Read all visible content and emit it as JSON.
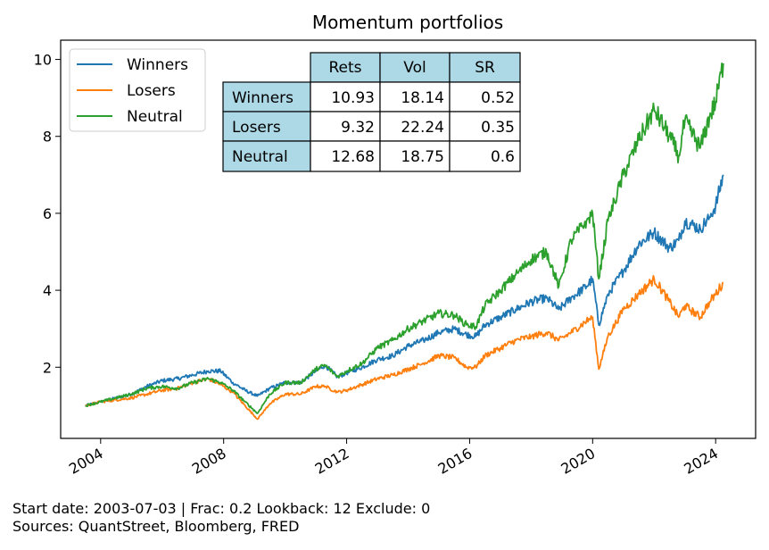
{
  "chart_data": {
    "type": "line",
    "title": "Momentum portfolios",
    "xlabel": "",
    "ylabel": "",
    "xlim": [
      2002.7,
      2025.3
    ],
    "ylim": [
      0.15,
      10.5
    ],
    "x_ticks": [
      2004,
      2008,
      2012,
      2016,
      2020,
      2024
    ],
    "y_ticks": [
      2,
      4,
      6,
      8,
      10
    ],
    "grid": false,
    "legend_placement": "top-left",
    "colors": {
      "Winners": "#1f77b4",
      "Losers": "#ff7f0e",
      "Neutral": "#2ca02c"
    },
    "x": [
      2003.5,
      2004.0,
      2004.5,
      2005.0,
      2005.5,
      2006.0,
      2006.5,
      2007.0,
      2007.5,
      2007.9,
      2008.3,
      2008.7,
      2009.1,
      2009.5,
      2010.0,
      2010.5,
      2011.0,
      2011.3,
      2011.7,
      2012.0,
      2012.5,
      2013.0,
      2013.5,
      2014.0,
      2014.5,
      2015.0,
      2015.5,
      2015.9,
      2016.2,
      2016.5,
      2017.0,
      2017.5,
      2018.0,
      2018.5,
      2018.9,
      2019.3,
      2019.8,
      2020.0,
      2020.2,
      2020.5,
      2021.0,
      2021.5,
      2022.0,
      2022.5,
      2022.8,
      2023.0,
      2023.5,
      2023.8,
      2024.0,
      2024.25
    ],
    "series": [
      {
        "name": "Winners",
        "values": [
          1.0,
          1.1,
          1.2,
          1.3,
          1.5,
          1.65,
          1.7,
          1.8,
          1.9,
          1.9,
          1.6,
          1.4,
          1.25,
          1.45,
          1.6,
          1.6,
          1.9,
          2.05,
          1.75,
          1.85,
          2.0,
          2.2,
          2.3,
          2.55,
          2.7,
          2.9,
          3.0,
          2.85,
          2.8,
          3.1,
          3.3,
          3.5,
          3.7,
          3.8,
          3.5,
          3.8,
          4.1,
          4.3,
          3.1,
          3.9,
          4.5,
          5.2,
          5.5,
          5.1,
          5.3,
          5.8,
          5.6,
          5.9,
          6.2,
          7.0
        ]
      },
      {
        "name": "Losers",
        "values": [
          1.0,
          1.1,
          1.15,
          1.2,
          1.3,
          1.4,
          1.45,
          1.6,
          1.7,
          1.55,
          1.35,
          1.0,
          0.65,
          1.05,
          1.3,
          1.3,
          1.5,
          1.5,
          1.35,
          1.4,
          1.55,
          1.7,
          1.8,
          1.95,
          2.1,
          2.3,
          2.25,
          2.0,
          2.0,
          2.3,
          2.5,
          2.7,
          2.8,
          2.9,
          2.7,
          2.9,
          3.2,
          3.3,
          1.95,
          2.8,
          3.5,
          3.9,
          4.3,
          3.7,
          3.3,
          3.6,
          3.3,
          3.7,
          3.9,
          4.2
        ]
      },
      {
        "name": "Neutral",
        "values": [
          1.0,
          1.1,
          1.2,
          1.3,
          1.45,
          1.5,
          1.45,
          1.6,
          1.7,
          1.6,
          1.4,
          1.1,
          0.8,
          1.3,
          1.6,
          1.6,
          1.95,
          2.05,
          1.75,
          1.9,
          2.1,
          2.5,
          2.7,
          3.0,
          3.2,
          3.4,
          3.35,
          3.1,
          3.05,
          3.6,
          4.0,
          4.4,
          4.8,
          5.0,
          4.1,
          5.3,
          5.8,
          6.0,
          4.3,
          5.8,
          7.0,
          7.9,
          8.7,
          8.0,
          7.5,
          8.4,
          7.7,
          8.5,
          8.9,
          9.9
        ]
      }
    ],
    "stats_table": {
      "headers": [
        "",
        "Rets",
        "Vol",
        "SR"
      ],
      "rows": [
        [
          "Winners",
          "10.93",
          "18.14",
          "0.52"
        ],
        [
          "Losers",
          "9.32",
          "22.24",
          "0.35"
        ],
        [
          "Neutral",
          "12.68",
          "18.75",
          "0.6"
        ]
      ],
      "header_bg": "#add8e6"
    }
  },
  "footer": {
    "line1": "Start date: 2003-07-03  |  Frac: 0.2  Lookback: 12  Exclude: 0",
    "line2": "Sources: QuantStreet, Bloomberg, FRED"
  }
}
